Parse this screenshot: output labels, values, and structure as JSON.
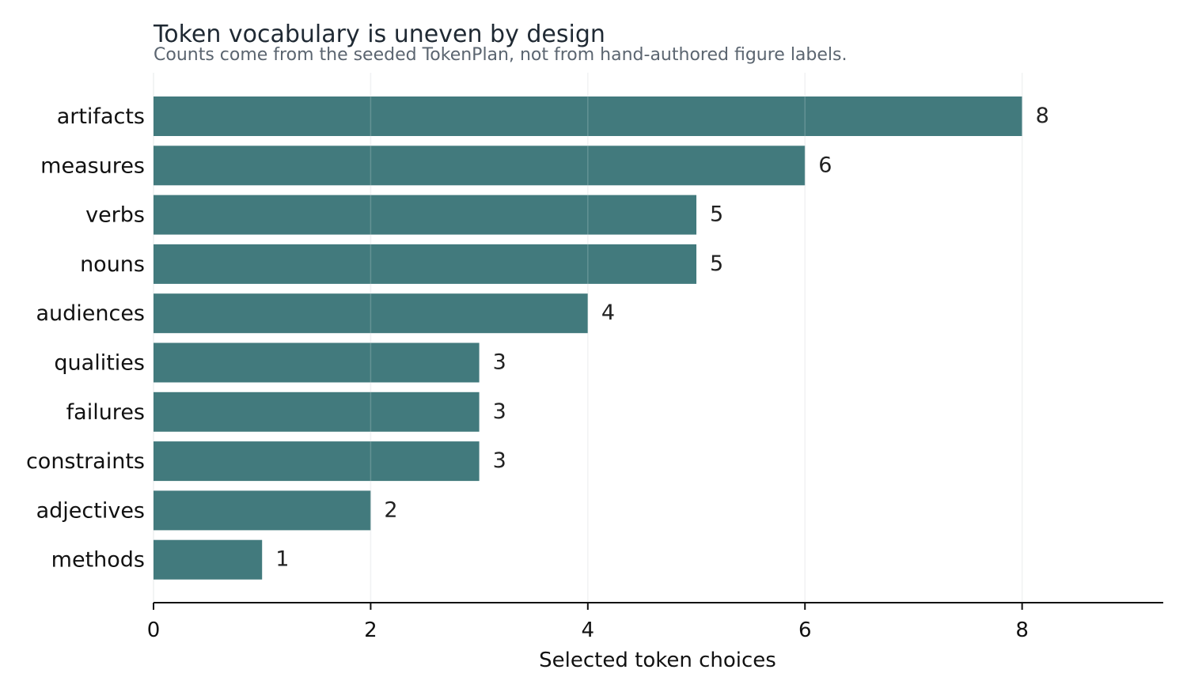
{
  "chart_data": {
    "type": "bar",
    "orientation": "horizontal",
    "title": "Token vocabulary is uneven by design",
    "subtitle": "Counts come from the seeded TokenPlan, not from hand-authored figure labels.",
    "xlabel": "Selected token choices",
    "ylabel": "",
    "categories": [
      "artifacts",
      "measures",
      "verbs",
      "nouns",
      "audiences",
      "qualities",
      "failures",
      "constraints",
      "adjectives",
      "methods"
    ],
    "values": [
      8,
      6,
      5,
      5,
      4,
      3,
      3,
      3,
      2,
      1
    ],
    "xlim": [
      0,
      9.3
    ],
    "xticks": [
      "0",
      "2",
      "4",
      "6",
      "8"
    ],
    "grid": true,
    "legend": "none",
    "data_labels": true,
    "colors": {
      "bar": "#427a7d",
      "title": "#1f2933",
      "subtitle": "#5b6570",
      "text": "#111111",
      "grid": "#eef0f1",
      "axis": "#111111"
    }
  }
}
